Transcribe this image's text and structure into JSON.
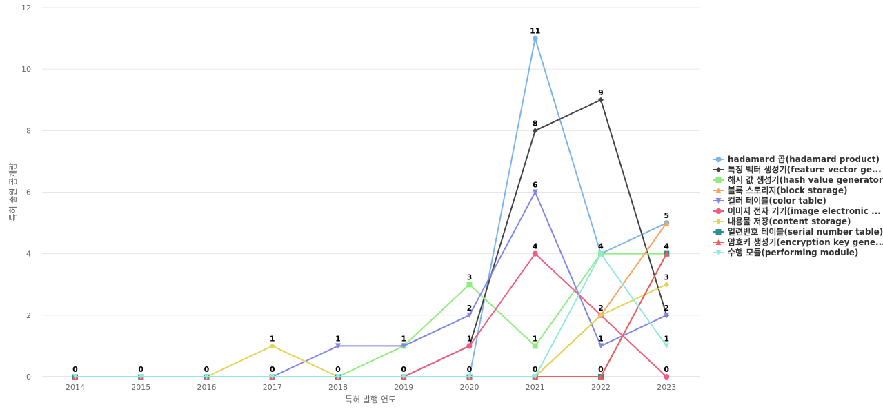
{
  "chart_data": {
    "type": "line",
    "title": "",
    "xlabel": "특허 발행 연도",
    "ylabel": "특허 출원 공개량",
    "categories": [
      "2014",
      "2015",
      "2016",
      "2017",
      "2018",
      "2019",
      "2020",
      "2021",
      "2022",
      "2023"
    ],
    "ylim": [
      0,
      12
    ],
    "yticks": [
      0,
      2,
      4,
      6,
      8,
      10,
      12
    ],
    "grid": true,
    "legend_position": "right",
    "series": [
      {
        "name": "hadamard 곱(hadamard product)",
        "color": "#7cb5ec",
        "marker": "circle",
        "values": [
          0,
          0,
          0,
          0,
          0,
          0,
          0,
          11,
          4,
          5
        ]
      },
      {
        "name": "특징 벡터 생성기(feature vector ge...",
        "color": "#434348",
        "marker": "diamond",
        "values": [
          0,
          0,
          0,
          0,
          0,
          0,
          1,
          8,
          9,
          2
        ]
      },
      {
        "name": "해시 값 생성기(hash value generator)",
        "color": "#90ed7d",
        "marker": "square",
        "values": [
          0,
          0,
          0,
          0,
          0,
          1,
          3,
          1,
          4,
          4
        ]
      },
      {
        "name": "블록 스토리지(block storage)",
        "color": "#f7a35c",
        "marker": "triangle",
        "values": [
          0,
          0,
          0,
          0,
          0,
          0,
          0,
          0,
          2,
          5
        ]
      },
      {
        "name": "컬러 테이블(color table)",
        "color": "#8085e9",
        "marker": "triangle-down",
        "values": [
          0,
          0,
          0,
          0,
          1,
          1,
          2,
          6,
          1,
          2
        ]
      },
      {
        "name": "이미지 전자 기기(image electronic ...",
        "color": "#f15c80",
        "marker": "circle",
        "values": [
          0,
          0,
          0,
          0,
          0,
          0,
          1,
          4,
          2,
          0
        ]
      },
      {
        "name": "내용물 저장(content storage)",
        "color": "#e4d354",
        "marker": "diamond",
        "values": [
          0,
          0,
          0,
          1,
          0,
          0,
          0,
          0,
          2,
          3
        ]
      },
      {
        "name": "일련번호 테이블(serial number table)",
        "color": "#2b908f",
        "marker": "square",
        "values": [
          0,
          0,
          0,
          0,
          0,
          0,
          0,
          0,
          0,
          4
        ]
      },
      {
        "name": "암호키 생성기(encryption key gene...",
        "color": "#f45b5b",
        "marker": "triangle",
        "values": [
          0,
          0,
          0,
          0,
          0,
          0,
          0,
          0,
          0,
          4
        ]
      },
      {
        "name": "수행 모듈(performing module)",
        "color": "#91e8e1",
        "marker": "triangle-down",
        "values": [
          0,
          0,
          0,
          0,
          0,
          0,
          0,
          0,
          4,
          1
        ]
      }
    ],
    "data_labels": [
      {
        "category": "2014",
        "text": "0",
        "value": 0
      },
      {
        "category": "2015",
        "text": "0",
        "value": 0
      },
      {
        "category": "2016",
        "text": "0",
        "value": 0
      },
      {
        "category": "2017",
        "text": "1",
        "value": 1
      },
      {
        "category": "2017",
        "text": "0",
        "value": 0
      },
      {
        "category": "2018",
        "text": "1",
        "value": 1
      },
      {
        "category": "2018",
        "text": "0",
        "value": 0
      },
      {
        "category": "2019",
        "text": "1",
        "value": 1
      },
      {
        "category": "2019",
        "text": "0",
        "value": 0
      },
      {
        "category": "2020",
        "text": "3",
        "value": 3
      },
      {
        "category": "2020",
        "text": "2",
        "value": 2
      },
      {
        "category": "2020",
        "text": "1",
        "value": 1
      },
      {
        "category": "2020",
        "text": "0",
        "value": 0
      },
      {
        "category": "2021",
        "text": "11",
        "value": 11
      },
      {
        "category": "2021",
        "text": "8",
        "value": 8
      },
      {
        "category": "2021",
        "text": "6",
        "value": 6
      },
      {
        "category": "2021",
        "text": "4",
        "value": 4
      },
      {
        "category": "2021",
        "text": "1",
        "value": 1
      },
      {
        "category": "2021",
        "text": "0",
        "value": 0
      },
      {
        "category": "2022",
        "text": "9",
        "value": 9
      },
      {
        "category": "2022",
        "text": "4",
        "value": 4
      },
      {
        "category": "2022",
        "text": "2",
        "value": 2
      },
      {
        "category": "2022",
        "text": "1",
        "value": 1
      },
      {
        "category": "2022",
        "text": "0",
        "value": 0
      },
      {
        "category": "2023",
        "text": "5",
        "value": 5
      },
      {
        "category": "2023",
        "text": "4",
        "value": 4
      },
      {
        "category": "2023",
        "text": "3",
        "value": 3
      },
      {
        "category": "2023",
        "text": "2",
        "value": 2
      },
      {
        "category": "2023",
        "text": "1",
        "value": 1
      },
      {
        "category": "2023",
        "text": "0",
        "value": 0
      }
    ]
  }
}
